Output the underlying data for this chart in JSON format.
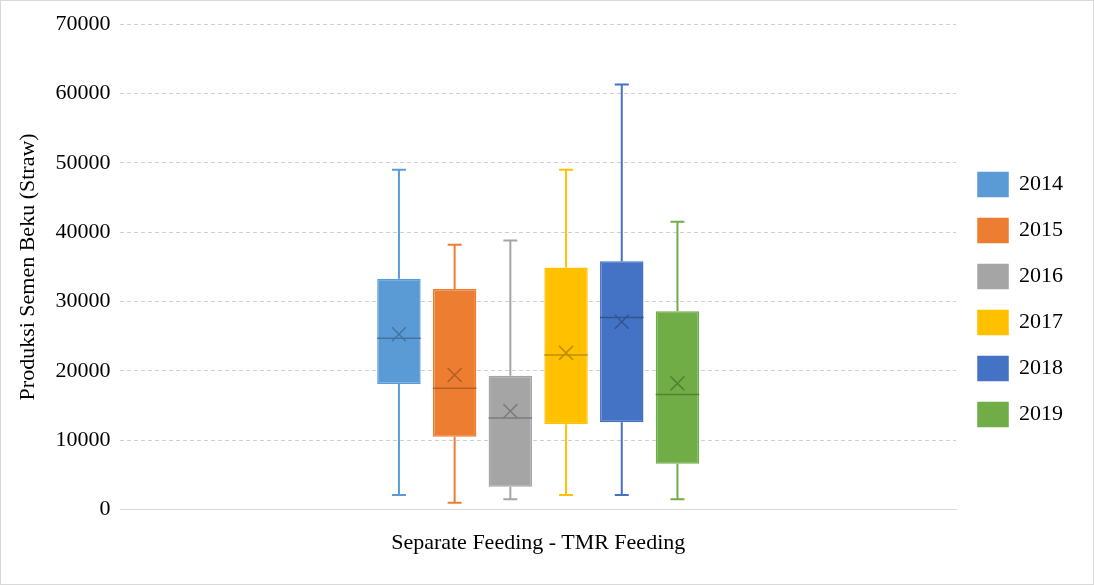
{
  "chart_data": {
    "type": "box",
    "ylabel": "Produksi Semen Beku (Straw)",
    "categories": [
      "Separate Feeding - TMR Feeding"
    ],
    "ylim": [
      0,
      70000
    ],
    "yticks": [
      0,
      10000,
      20000,
      30000,
      40000,
      50000,
      60000,
      70000
    ],
    "grid": "y",
    "legend": "right",
    "series": [
      {
        "name": "2014",
        "color": "#5b9bd5",
        "boxes": [
          {
            "low": 2100,
            "q1": 18100,
            "median": 24700,
            "q3": 33300,
            "high": 49000,
            "mean": 25300
          }
        ]
      },
      {
        "name": "2015",
        "color": "#ed7d31",
        "boxes": [
          {
            "low": 1000,
            "q1": 10500,
            "median": 17500,
            "q3": 31800,
            "high": 38200,
            "mean": 19400
          }
        ]
      },
      {
        "name": "2016",
        "color": "#a5a5a5",
        "boxes": [
          {
            "low": 1500,
            "q1": 3300,
            "median": 13200,
            "q3": 19300,
            "high": 38800,
            "mean": 14200
          }
        ]
      },
      {
        "name": "2017",
        "color": "#ffc000",
        "boxes": [
          {
            "low": 2100,
            "q1": 12300,
            "median": 22300,
            "q3": 34900,
            "high": 49000,
            "mean": 22600
          }
        ]
      },
      {
        "name": "2018",
        "color": "#4472c4",
        "boxes": [
          {
            "low": 2100,
            "q1": 12600,
            "median": 27700,
            "q3": 35800,
            "high": 61300,
            "mean": 27100
          }
        ]
      },
      {
        "name": "2019",
        "color": "#70ad47",
        "boxes": [
          {
            "low": 1500,
            "q1": 6600,
            "median": 16600,
            "q3": 28600,
            "high": 41500,
            "mean": 18200
          }
        ]
      }
    ]
  }
}
